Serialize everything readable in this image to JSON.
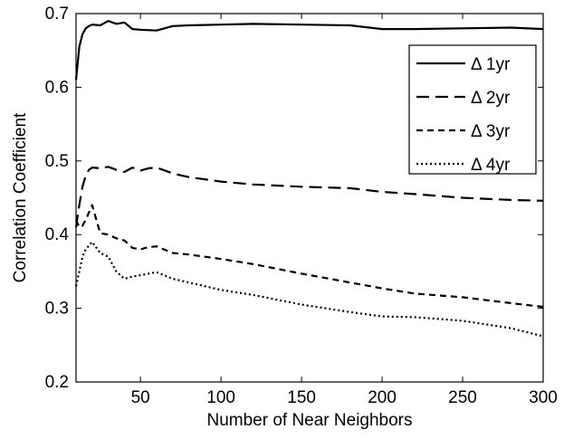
{
  "chart_data": {
    "type": "line",
    "xlabel": "Number of Near Neighbors",
    "ylabel": "Correlation Coefficient",
    "xlim": [
      10,
      300
    ],
    "ylim": [
      0.2,
      0.7
    ],
    "xticks": [
      50,
      100,
      150,
      200,
      250,
      300
    ],
    "yticks": [
      0.2,
      0.3,
      0.4,
      0.5,
      0.6,
      0.7
    ],
    "xtick_labels": [
      "50",
      "100",
      "150",
      "200",
      "250",
      "300"
    ],
    "ytick_labels": [
      "0.2",
      "0.3",
      "0.4",
      "0.5",
      "0.6",
      "0.7"
    ],
    "grid": false,
    "legend_position": "top-right",
    "series": [
      {
        "name": "Δ 1yr",
        "style": "solid",
        "x": [
          10,
          12,
          14,
          16,
          18,
          20,
          25,
          30,
          35,
          40,
          45,
          50,
          60,
          70,
          80,
          100,
          120,
          150,
          180,
          200,
          220,
          250,
          280,
          300
        ],
        "y": [
          0.61,
          0.655,
          0.672,
          0.68,
          0.683,
          0.685,
          0.684,
          0.69,
          0.686,
          0.688,
          0.679,
          0.678,
          0.677,
          0.683,
          0.684,
          0.685,
          0.686,
          0.685,
          0.684,
          0.679,
          0.679,
          0.68,
          0.681,
          0.679
        ]
      },
      {
        "name": "Δ 2yr",
        "style": "dashed",
        "x": [
          10,
          12,
          14,
          16,
          18,
          20,
          25,
          30,
          35,
          40,
          45,
          50,
          55,
          60,
          70,
          80,
          100,
          120,
          150,
          180,
          200,
          220,
          250,
          280,
          300
        ],
        "y": [
          0.41,
          0.44,
          0.465,
          0.48,
          0.488,
          0.491,
          0.49,
          0.492,
          0.488,
          0.485,
          0.491,
          0.487,
          0.49,
          0.491,
          0.483,
          0.478,
          0.472,
          0.468,
          0.465,
          0.463,
          0.458,
          0.455,
          0.45,
          0.447,
          0.446
        ]
      },
      {
        "name": "Δ 3yr",
        "style": "dashed-short",
        "x": [
          10,
          12,
          14,
          16,
          18,
          20,
          25,
          30,
          35,
          40,
          45,
          50,
          55,
          60,
          70,
          80,
          100,
          120,
          150,
          180,
          200,
          220,
          250,
          280,
          300
        ],
        "y": [
          0.42,
          0.41,
          0.412,
          0.42,
          0.43,
          0.44,
          0.402,
          0.4,
          0.395,
          0.392,
          0.382,
          0.38,
          0.383,
          0.384,
          0.375,
          0.373,
          0.367,
          0.36,
          0.347,
          0.335,
          0.327,
          0.32,
          0.315,
          0.307,
          0.302
        ]
      },
      {
        "name": "Δ 4yr",
        "style": "dotted",
        "x": [
          10,
          12,
          14,
          16,
          18,
          20,
          25,
          30,
          35,
          40,
          45,
          50,
          55,
          60,
          70,
          80,
          100,
          120,
          150,
          180,
          200,
          220,
          250,
          280,
          300
        ],
        "y": [
          0.33,
          0.35,
          0.37,
          0.38,
          0.385,
          0.39,
          0.375,
          0.37,
          0.35,
          0.34,
          0.343,
          0.345,
          0.347,
          0.349,
          0.34,
          0.335,
          0.325,
          0.318,
          0.305,
          0.295,
          0.289,
          0.288,
          0.283,
          0.273,
          0.262
        ]
      }
    ]
  }
}
